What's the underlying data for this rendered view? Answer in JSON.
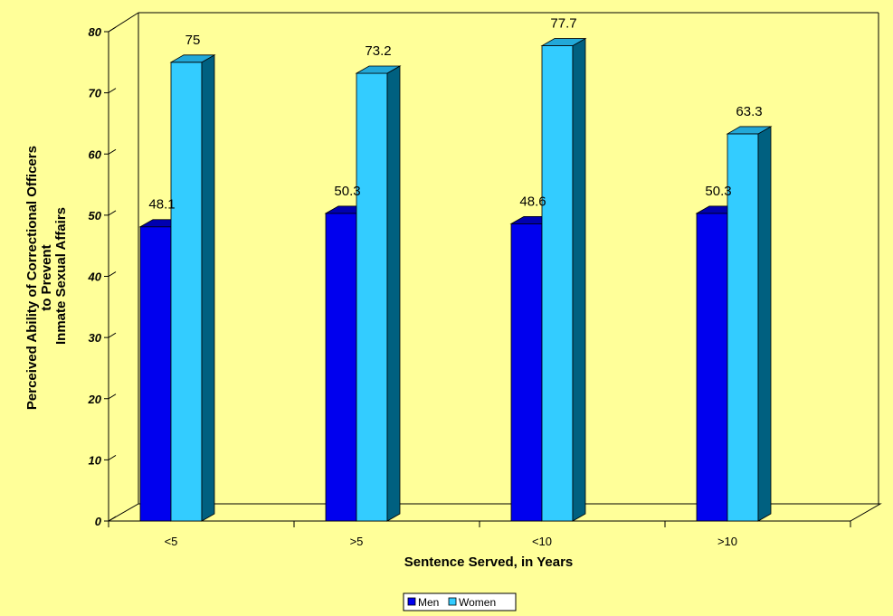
{
  "chart_data": {
    "type": "bar",
    "categories": [
      "<5",
      ">5",
      "<10",
      ">10"
    ],
    "series": [
      {
        "name": "Men",
        "values": [
          48.1,
          50.3,
          48.6,
          50.3
        ],
        "front": "#0000ee",
        "side": "#000080",
        "top": "#0000b0"
      },
      {
        "name": "Women",
        "values": [
          75,
          73.2,
          77.7,
          63.3
        ],
        "front": "#33ccff",
        "side": "#006080",
        "top": "#22a8d8"
      }
    ],
    "data_labels": [
      [
        "48.1",
        "50.3",
        "48.6",
        "50.3"
      ],
      [
        "75",
        "73.2",
        "77.7",
        "63.3"
      ]
    ],
    "xlabel": "Sentence Served, in Years",
    "ylabel_lines": [
      "Perceived Ability of Correctional Officers",
      "to Prevent",
      "Inmate Sexual Affairs"
    ],
    "ylim": [
      0,
      80
    ],
    "yticks": [
      "0",
      "10",
      "20",
      "30",
      "40",
      "50",
      "60",
      "70",
      "80"
    ],
    "grid": false,
    "legend_position": "bottom-center",
    "colors": {
      "background": "#ffff99",
      "wall": "#ffff99"
    }
  }
}
